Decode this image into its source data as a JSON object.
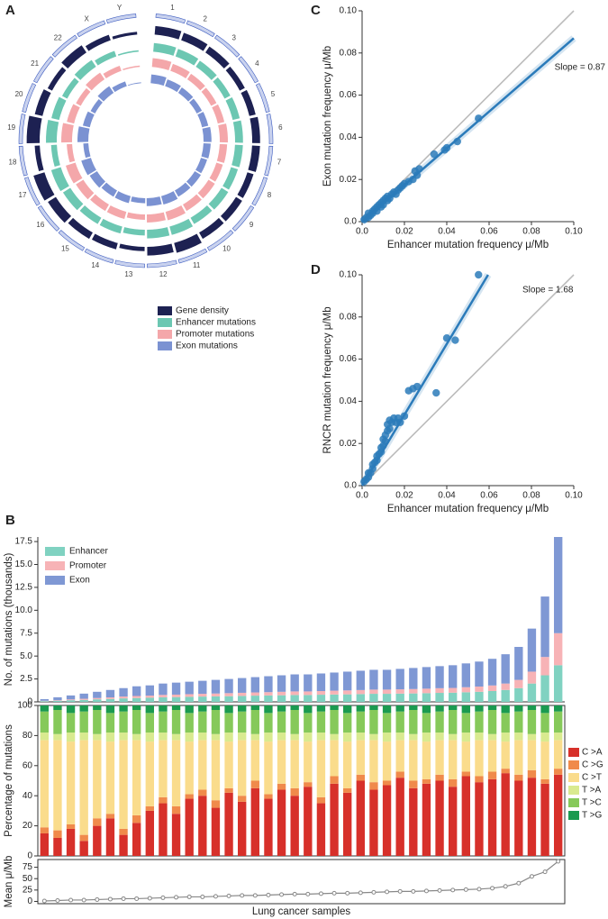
{
  "chart_data": [
    {
      "type": "circos",
      "panel_label": "A",
      "legend": "below",
      "chromosomes": [
        "1",
        "2",
        "3",
        "4",
        "5",
        "6",
        "7",
        "8",
        "9",
        "10",
        "11",
        "12",
        "13",
        "14",
        "15",
        "16",
        "17",
        "18",
        "19",
        "20",
        "21",
        "22",
        "X",
        "Y"
      ],
      "series": [
        {
          "name": "Gene density",
          "color": "#1d2152",
          "values": [
            60,
            55,
            50,
            40,
            45,
            55,
            55,
            45,
            50,
            50,
            70,
            60,
            30,
            45,
            50,
            65,
            80,
            35,
            90,
            55,
            35,
            60,
            40,
            20
          ]
        },
        {
          "name": "Enhancer mutations",
          "color": "#6cc7b2",
          "values": [
            60,
            55,
            50,
            45,
            50,
            55,
            55,
            50,
            55,
            50,
            60,
            60,
            40,
            50,
            50,
            60,
            70,
            40,
            75,
            55,
            40,
            55,
            40,
            10
          ]
        },
        {
          "name": "Promoter mutations",
          "color": "#f4a7aa",
          "values": [
            65,
            55,
            50,
            45,
            50,
            60,
            55,
            50,
            55,
            55,
            65,
            60,
            40,
            55,
            55,
            65,
            75,
            40,
            80,
            55,
            40,
            60,
            40,
            10
          ]
        },
        {
          "name": "Exon mutations",
          "color": "#7b92d2",
          "values": [
            60,
            50,
            45,
            40,
            45,
            55,
            50,
            45,
            50,
            50,
            60,
            55,
            35,
            50,
            50,
            60,
            70,
            35,
            75,
            50,
            35,
            55,
            35,
            5
          ]
        }
      ]
    },
    {
      "type": "scatter",
      "panel_label": "C",
      "x_label": "Enhancer mutation frequency μ/Mb",
      "y_label": "Exon mutation frequency μ/Mb",
      "color": "#2b7bba",
      "x": [
        0.001,
        0.002,
        0.003,
        0.003,
        0.004,
        0.005,
        0.005,
        0.006,
        0.007,
        0.007,
        0.008,
        0.009,
        0.009,
        0.01,
        0.01,
        0.011,
        0.012,
        0.012,
        0.013,
        0.014,
        0.015,
        0.016,
        0.017,
        0.018,
        0.019,
        0.02,
        0.022,
        0.024,
        0.025,
        0.026,
        0.027,
        0.034,
        0.039,
        0.04,
        0.045,
        0.055
      ],
      "values": [
        0.001,
        0.002,
        0.002,
        0.004,
        0.003,
        0.005,
        0.004,
        0.006,
        0.005,
        0.007,
        0.008,
        0.007,
        0.009,
        0.01,
        0.008,
        0.011,
        0.01,
        0.012,
        0.011,
        0.013,
        0.014,
        0.013,
        0.015,
        0.016,
        0.017,
        0.018,
        0.019,
        0.02,
        0.024,
        0.022,
        0.025,
        0.032,
        0.034,
        0.035,
        0.038,
        0.049
      ],
      "fit": {
        "slope": 0.87,
        "label": "Slope = 0.87"
      },
      "xlim": [
        0,
        0.1
      ],
      "xticks": [
        {
          "value": 0,
          "label": "0.0"
        },
        0.02,
        0.04,
        0.06,
        0.08,
        {
          "value": 0.1,
          "label": "0.10"
        }
      ],
      "ylim": [
        0,
        0.1
      ],
      "yticks": [
        {
          "value": 0,
          "label": "0.0"
        },
        0.02,
        0.04,
        0.06,
        0.08,
        {
          "value": 0.1,
          "label": "0.10"
        }
      ]
    },
    {
      "type": "scatter",
      "panel_label": "D",
      "x_label": "Enhancer mutation frequency μ/Mb",
      "y_label": "RNCR mutation frequency μ/Mb",
      "color": "#2b7bba",
      "x": [
        0.001,
        0.002,
        0.003,
        0.003,
        0.004,
        0.005,
        0.005,
        0.006,
        0.007,
        0.007,
        0.008,
        0.009,
        0.009,
        0.01,
        0.01,
        0.011,
        0.011,
        0.012,
        0.012,
        0.013,
        0.013,
        0.014,
        0.015,
        0.016,
        0.017,
        0.018,
        0.02,
        0.022,
        0.024,
        0.026,
        0.035,
        0.04,
        0.044,
        0.055
      ],
      "values": [
        0.002,
        0.003,
        0.004,
        0.006,
        0.006,
        0.008,
        0.01,
        0.011,
        0.012,
        0.014,
        0.015,
        0.016,
        0.018,
        0.019,
        0.022,
        0.021,
        0.024,
        0.026,
        0.029,
        0.027,
        0.031,
        0.03,
        0.032,
        0.03,
        0.032,
        0.03,
        0.033,
        0.045,
        0.046,
        0.047,
        0.044,
        0.07,
        0.069,
        0.1
      ],
      "fit": {
        "slope": 1.68,
        "label": "Slope = 1.68"
      },
      "xlim": [
        0,
        0.1
      ],
      "xticks": [
        {
          "value": 0,
          "label": "0.0"
        },
        0.02,
        0.04,
        0.06,
        0.08,
        {
          "value": 0.1,
          "label": "0.10"
        }
      ],
      "ylim": [
        0,
        0.1
      ],
      "yticks": [
        {
          "value": 0,
          "label": "0.0"
        },
        0.02,
        0.04,
        0.06,
        0.08,
        {
          "value": 0.1,
          "label": "0.10"
        }
      ]
    },
    {
      "type": "bar",
      "stacked": true,
      "panel_label": "B",
      "y_label": "No. of mutations (thousands)",
      "legend": "upper left",
      "series": [
        {
          "name": "Enhancer",
          "color": "#80d2c1",
          "values": [
            0.08,
            0.12,
            0.18,
            0.22,
            0.28,
            0.32,
            0.38,
            0.42,
            0.45,
            0.5,
            0.52,
            0.55,
            0.58,
            0.6,
            0.62,
            0.65,
            0.68,
            0.7,
            0.72,
            0.75,
            0.75,
            0.78,
            0.8,
            0.82,
            0.85,
            0.88,
            0.88,
            0.9,
            0.92,
            0.95,
            0.98,
            1.0,
            1.05,
            1.1,
            1.18,
            1.3,
            1.5,
            2.0,
            2.9,
            4.0
          ]
        },
        {
          "name": "Promoter",
          "color": "#f7b3b6",
          "values": [
            0.04,
            0.06,
            0.09,
            0.12,
            0.14,
            0.17,
            0.2,
            0.22,
            0.23,
            0.26,
            0.27,
            0.29,
            0.3,
            0.31,
            0.33,
            0.34,
            0.35,
            0.36,
            0.38,
            0.39,
            0.39,
            0.4,
            0.42,
            0.43,
            0.44,
            0.46,
            0.46,
            0.47,
            0.48,
            0.49,
            0.51,
            0.52,
            0.55,
            0.57,
            0.61,
            0.7,
            0.9,
            1.3,
            2.0,
            3.5
          ]
        },
        {
          "name": "Exon",
          "color": "#7f98d4",
          "values": [
            0.18,
            0.32,
            0.43,
            0.56,
            0.68,
            0.81,
            0.92,
            1.06,
            1.12,
            1.24,
            1.31,
            1.36,
            1.42,
            1.49,
            1.55,
            1.61,
            1.67,
            1.74,
            1.8,
            1.86,
            1.86,
            1.92,
            1.98,
            2.05,
            2.11,
            2.16,
            2.16,
            2.23,
            2.3,
            2.36,
            2.41,
            2.48,
            2.6,
            2.73,
            2.91,
            3.2,
            3.6,
            4.7,
            6.6,
            10.5
          ]
        }
      ],
      "ylim": [
        0,
        18
      ],
      "yticks": [
        0,
        2.5,
        {
          "value": 5,
          "label": "5.0"
        },
        7.5,
        {
          "value": 10,
          "label": "10.0"
        },
        12.5,
        {
          "value": 15,
          "label": "15.0"
        },
        17.5
      ]
    },
    {
      "type": "bar",
      "stacked": true,
      "y_label": "Percentage of mutations",
      "legend": "right",
      "frame": true,
      "series": [
        {
          "name": "C >A",
          "color": "#d7302a",
          "values": [
            15,
            12,
            18,
            10,
            20,
            25,
            14,
            22,
            30,
            35,
            28,
            38,
            40,
            32,
            42,
            36,
            45,
            38,
            44,
            40,
            46,
            35,
            48,
            42,
            50,
            44,
            47,
            52,
            45,
            48,
            50,
            46,
            53,
            49,
            51,
            55,
            50,
            52,
            48,
            54
          ]
        },
        {
          "name": "C >G",
          "color": "#f08a4b",
          "values": [
            4,
            5,
            3,
            4,
            5,
            3,
            4,
            5,
            3,
            4,
            5,
            3,
            4,
            5,
            3,
            4,
            5,
            3,
            4,
            5,
            3,
            4,
            5,
            3,
            4,
            5,
            3,
            4,
            5,
            3,
            4,
            5,
            3,
            4,
            5,
            3,
            4,
            5,
            3,
            4
          ]
        },
        {
          "name": "C >T",
          "color": "#fadc8c",
          "values": [
            58,
            60,
            55,
            63,
            52,
            48,
            59,
            50,
            43,
            38,
            44,
            35,
            33,
            40,
            31,
            37,
            27,
            35,
            29,
            32,
            27,
            38,
            24,
            31,
            23,
            28,
            26,
            21,
            27,
            25,
            23,
            26,
            20,
            24,
            21,
            18,
            23,
            20,
            25,
            19
          ]
        },
        {
          "name": "T >A",
          "color": "#d9ea8f",
          "values": [
            5,
            4,
            6,
            5,
            4,
            6,
            5,
            4,
            6,
            5,
            4,
            6,
            5,
            4,
            6,
            5,
            4,
            6,
            5,
            4,
            6,
            5,
            4,
            6,
            5,
            4,
            6,
            5,
            4,
            6,
            5,
            4,
            6,
            5,
            4,
            6,
            5,
            4,
            6,
            5
          ]
        },
        {
          "name": "T >C",
          "color": "#86c95a",
          "values": [
            14,
            16,
            13,
            14,
            16,
            13,
            14,
            16,
            13,
            14,
            16,
            13,
            14,
            16,
            13,
            14,
            16,
            13,
            14,
            16,
            13,
            14,
            16,
            13,
            14,
            16,
            13,
            14,
            16,
            13,
            14,
            16,
            13,
            14,
            16,
            13,
            14,
            16,
            13,
            14
          ]
        },
        {
          "name": "T >G",
          "color": "#1a9a50",
          "values": [
            4,
            3,
            5,
            4,
            3,
            5,
            4,
            3,
            5,
            4,
            3,
            5,
            4,
            3,
            5,
            4,
            3,
            5,
            4,
            3,
            5,
            4,
            3,
            5,
            4,
            3,
            5,
            4,
            3,
            5,
            4,
            3,
            5,
            4,
            3,
            5,
            4,
            3,
            5,
            4
          ]
        }
      ],
      "ylim": [
        0,
        100
      ],
      "yticks": [
        0,
        20,
        40,
        60,
        80,
        100
      ]
    },
    {
      "type": "line",
      "y_label": "Mean μ/Mb",
      "x_label": "Lung cancer samples",
      "color": "#888888",
      "frame": true,
      "values": [
        1,
        2,
        3,
        3,
        4,
        5,
        6,
        6,
        7,
        8,
        9,
        10,
        10,
        11,
        12,
        13,
        13,
        14,
        15,
        16,
        16,
        17,
        18,
        18,
        19,
        20,
        21,
        22,
        22,
        23,
        24,
        25,
        26,
        27,
        29,
        33,
        40,
        55,
        65,
        88
      ],
      "ylim": [
        -5,
        92
      ],
      "yticks": [
        0,
        25,
        50,
        75
      ]
    }
  ]
}
